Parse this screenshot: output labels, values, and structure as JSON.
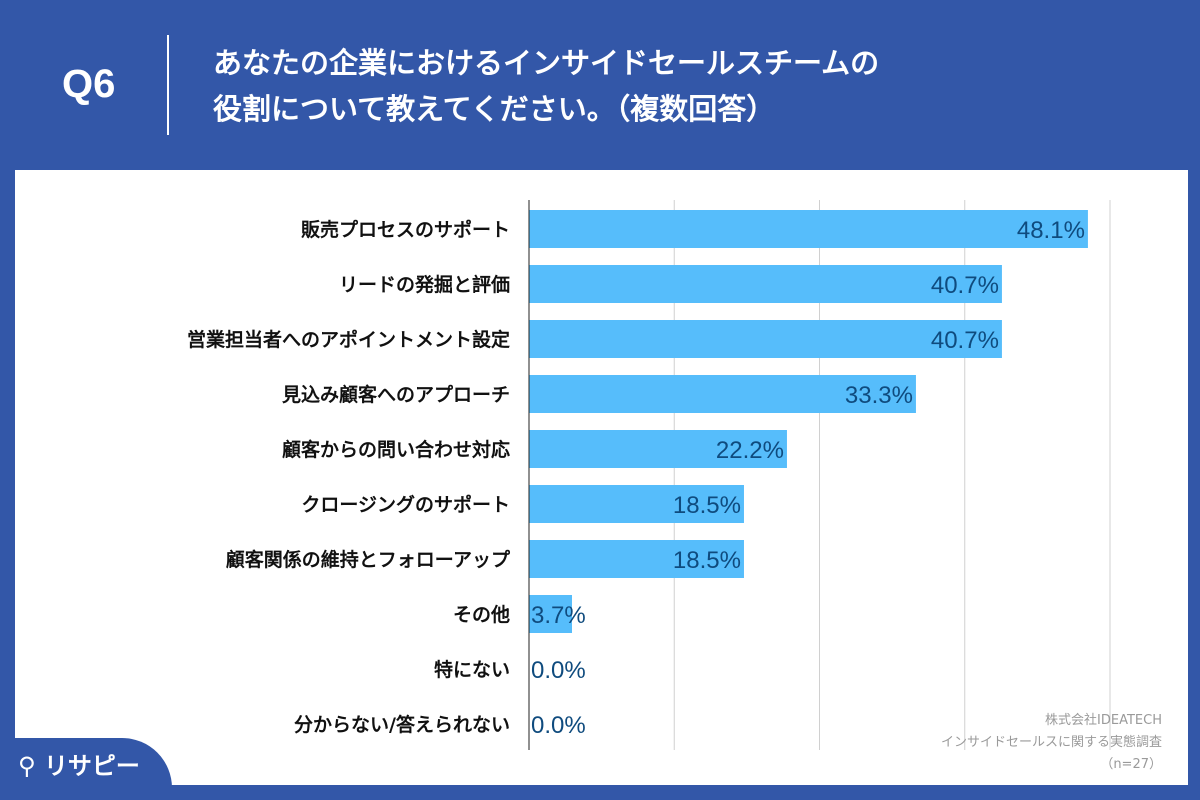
{
  "header": {
    "question": "Q6",
    "title_line1": "あなたの企業におけるインサイドセールスチームの",
    "title_line2": "役割について教えてください。（複数回答）"
  },
  "source": {
    "line1": "株式会社IDEATECH",
    "line2": "インサイドセールスに関する実態調査",
    "line3": "（n=27）"
  },
  "logo": {
    "text": "リサピー"
  },
  "colors": {
    "background": "#3357a8",
    "bar": "#56bdfb",
    "label": "#0f4b7e"
  },
  "chart_data": {
    "type": "bar",
    "orientation": "horizontal",
    "xlim": [
      0,
      50
    ],
    "grid": true,
    "unit": "%",
    "categories": [
      "販売プロセスのサポート",
      "リードの発掘と評価",
      "営業担当者へのアポイントメント設定",
      "見込み顧客へのアプローチ",
      "顧客からの問い合わせ対応",
      "クロージングのサポート",
      "顧客関係の維持とフォローアップ",
      "その他",
      "特にない",
      "分からない/答えられない"
    ],
    "values": [
      48.1,
      40.7,
      40.7,
      33.3,
      22.2,
      18.5,
      18.5,
      3.7,
      0.0,
      0.0
    ],
    "data_labels": [
      "48.1%",
      "40.7%",
      "40.7%",
      "33.3%",
      "22.2%",
      "18.5%",
      "18.5%",
      "3.7%",
      "0.0%",
      "0.0%"
    ]
  }
}
